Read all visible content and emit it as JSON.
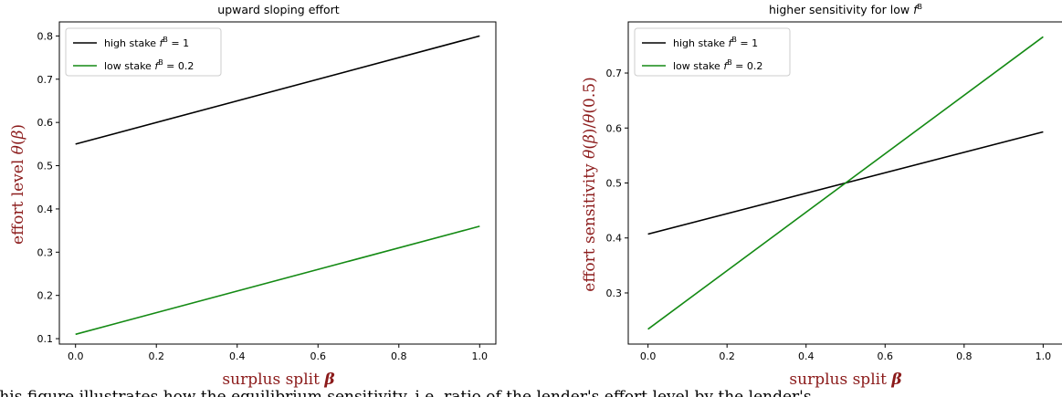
{
  "colors": {
    "high": "#000000",
    "low": "#148a14",
    "axis_label": "#8b1a1a"
  },
  "caption": "This figure illustrates how the equilibrium sensitivity, i.e. ratio of the lender's effort level by the lender's",
  "chart_data": [
    {
      "type": "line",
      "title": "upward sloping effort",
      "xlabel": "surplus split β",
      "ylabel": "effort level θ(β)",
      "xlim": [
        -0.04,
        1.04
      ],
      "ylim": [
        0.0875,
        0.8325
      ],
      "xticks": [
        "0.0",
        "0.2",
        "0.4",
        "0.6",
        "0.8",
        "1.0"
      ],
      "yticks": [
        "0.1",
        "0.2",
        "0.3",
        "0.4",
        "0.5",
        "0.6",
        "0.7",
        "0.8"
      ],
      "legend_position": "top-left",
      "series": [
        {
          "name": "high stake f^B = 1",
          "color": "#000000",
          "x": [
            0,
            1
          ],
          "y": [
            0.55,
            0.8
          ]
        },
        {
          "name": "low stake f^B = 0.2",
          "color": "#148a14",
          "x": [
            0,
            1
          ],
          "y": [
            0.11,
            0.36
          ]
        }
      ]
    },
    {
      "type": "line",
      "title": "higher sensitivity for low f^B",
      "xlabel": "surplus split β",
      "ylabel": "effort sensitivity θ(β)/θ(0.5)",
      "xlim": [
        -0.05,
        1.05
      ],
      "ylim": [
        0.207,
        0.793
      ],
      "xticks": [
        "0.0",
        "0.2",
        "0.4",
        "0.6",
        "0.8",
        "1.0"
      ],
      "yticks": [
        "0.3",
        "0.4",
        "0.5",
        "0.6",
        "0.7"
      ],
      "legend_position": "top-left",
      "series": [
        {
          "name": "high stake f^B = 1",
          "color": "#000000",
          "x": [
            0,
            1
          ],
          "y": [
            0.407,
            0.593
          ]
        },
        {
          "name": "low stake f^B = 0.2",
          "color": "#148a14",
          "x": [
            0,
            1
          ],
          "y": [
            0.234,
            0.766
          ]
        }
      ]
    }
  ]
}
